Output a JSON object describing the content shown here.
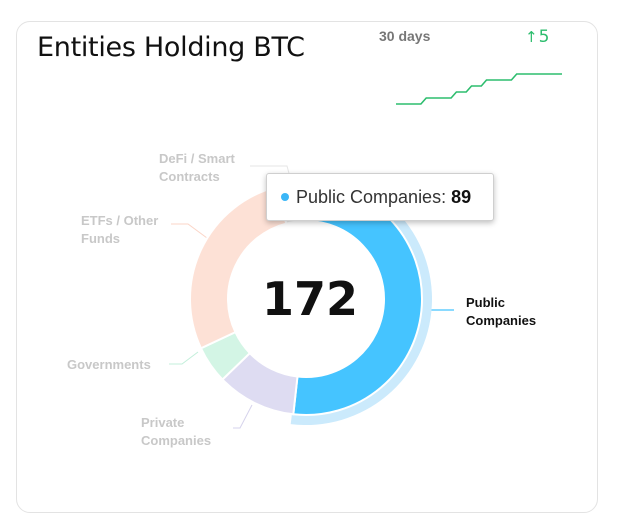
{
  "card": {
    "title": "Entities Holding BTC"
  },
  "trend": {
    "label": "30 days",
    "change": "5",
    "arrow": "↑",
    "color": "#2dbd6e",
    "values": [
      166,
      166,
      167,
      167,
      168,
      169,
      170,
      170,
      171,
      171,
      171,
      171
    ]
  },
  "chart_data": {
    "type": "pie",
    "variant": "donut",
    "total": 172,
    "categories": [
      "Public Companies",
      "Private Companies",
      "Governments",
      "ETFs / Other Funds",
      "DeFi / Smart Contracts"
    ],
    "values": [
      89,
      19,
      9,
      48,
      7
    ],
    "colors": [
      "#45c4ff",
      "#dedcf2",
      "#d3f5e5",
      "#fde1d6",
      "#eeeeee"
    ],
    "highlighted": "Public Companies",
    "labels": {
      "public": [
        "Public",
        "Companies"
      ],
      "private": [
        "Private",
        "Companies"
      ],
      "governments": [
        "Governments"
      ],
      "etfs": [
        "ETFs / Other",
        "Funds"
      ],
      "defi": [
        "DeFi / Smart",
        "Contracts"
      ]
    }
  },
  "tooltip": {
    "label": "Public Companies:",
    "value": "89"
  }
}
